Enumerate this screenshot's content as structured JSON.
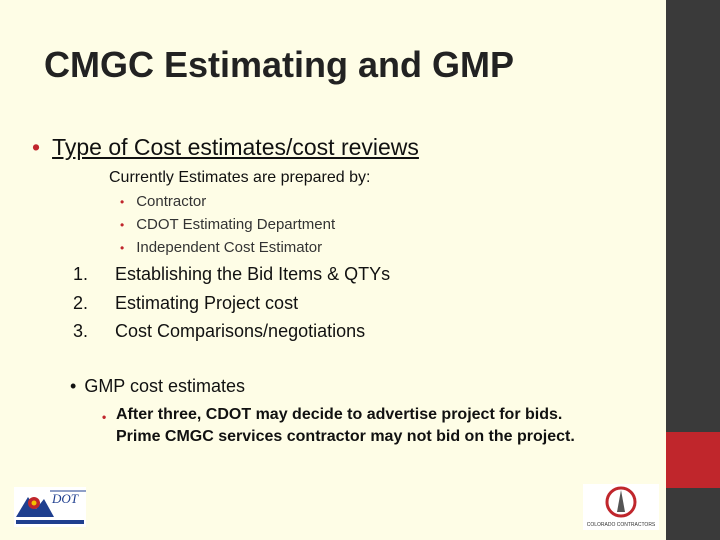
{
  "slide": {
    "title": "CMGC Estimating and GMP",
    "bullet1": "Type of Cost estimates/cost reviews",
    "subheading": "Currently Estimates are prepared by:",
    "preparers": [
      "Contractor",
      "CDOT Estimating Department",
      "Independent Cost Estimator"
    ],
    "numbered": [
      {
        "num": "1.",
        "text": "Establishing the Bid Items & QTYs"
      },
      {
        "num": "2.",
        "text": "Estimating Project cost"
      },
      {
        "num": "3.",
        "text": "Cost Comparisons/negotiations"
      }
    ],
    "bullet2": "GMP cost estimates",
    "note_line1": "After three, CDOT may decide to advertise project for bids.",
    "note_line2": "Prime CMGC services contractor may not bid on the project."
  },
  "logos": {
    "left_text": "DOT",
    "right_text": "COLORADO CONTRACTORS"
  },
  "colors": {
    "accent": "#c0262c",
    "background": "#fefde6",
    "sidebar": "#3a3a3a"
  }
}
